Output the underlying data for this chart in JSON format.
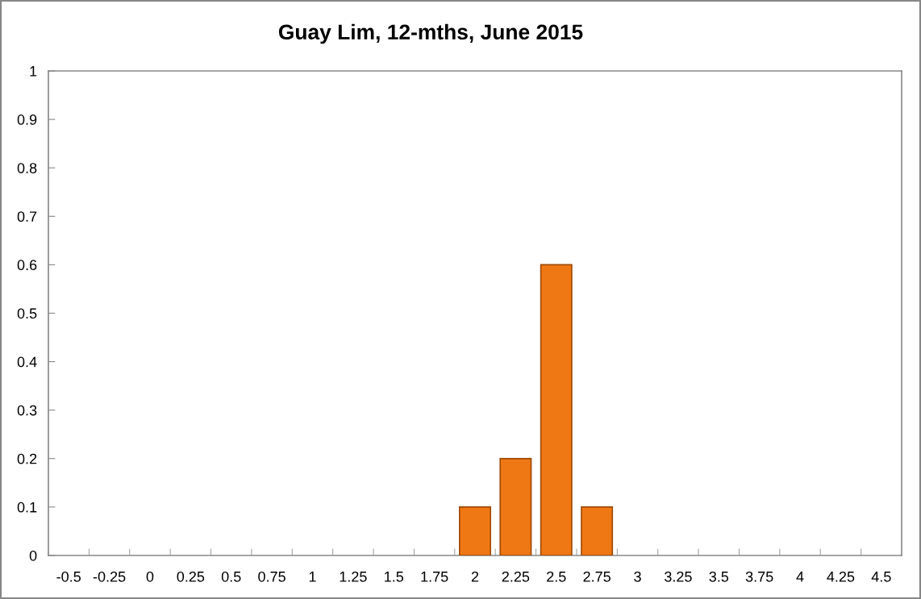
{
  "chart_data": {
    "type": "bar",
    "title": "Guay Lim, 12-mths, June 2015",
    "categories": [
      "-0.5",
      "-0.25",
      "0",
      "0.25",
      "0.5",
      "0.75",
      "1",
      "1.25",
      "1.5",
      "1.75",
      "2",
      "2.25",
      "2.5",
      "2.75",
      "3",
      "3.25",
      "3.5",
      "3.75",
      "4",
      "4.25",
      "4.5"
    ],
    "values": [
      null,
      null,
      null,
      null,
      null,
      null,
      null,
      null,
      null,
      null,
      0.1,
      0.2,
      0.6,
      0.1,
      null,
      null,
      null,
      null,
      null,
      null,
      null
    ],
    "color": "#f07814",
    "ylim": [
      0,
      1
    ],
    "yticks": [
      0,
      0.1,
      0.2,
      0.3,
      0.4,
      0.5,
      0.6,
      0.7,
      0.8,
      0.9,
      1
    ]
  }
}
